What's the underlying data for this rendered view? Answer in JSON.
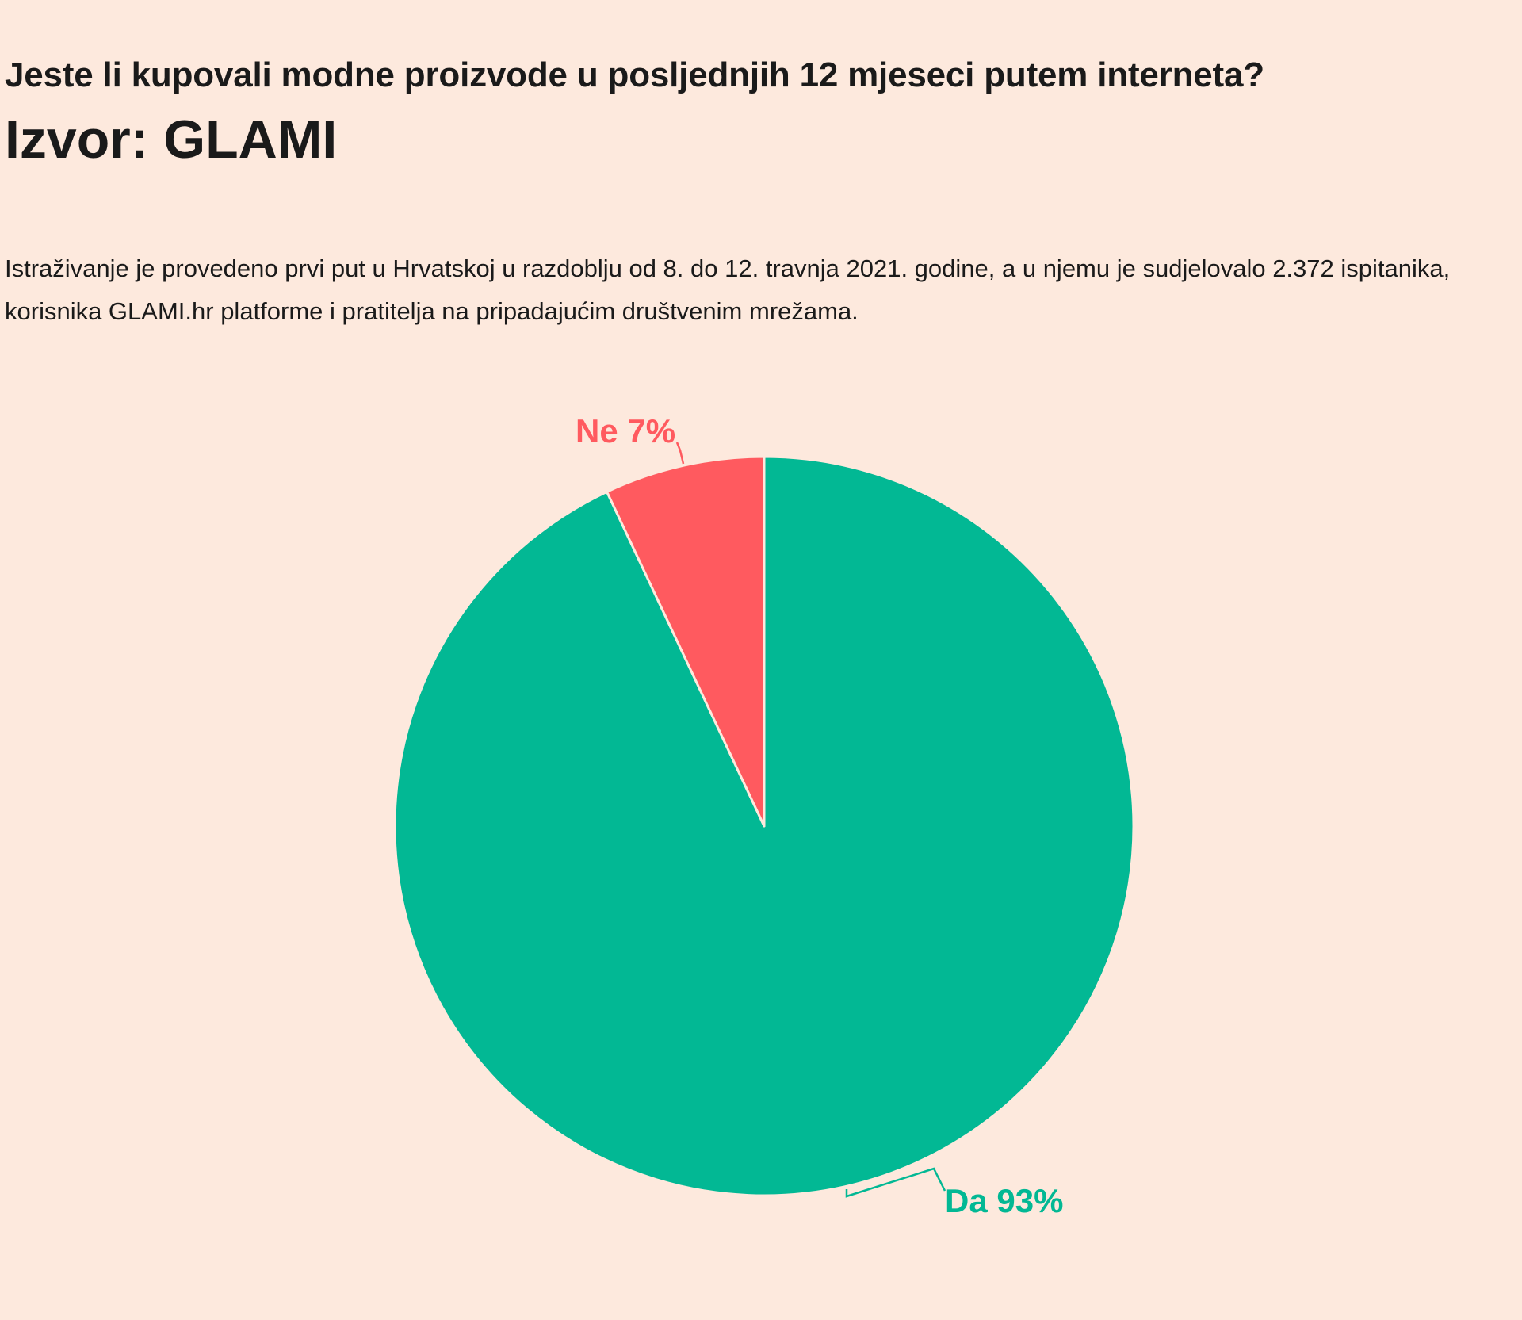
{
  "header": {
    "question": "Jeste li kupovali modne proizvode u posljednjih 12 mjeseci putem interneta?",
    "source": "Izvor: GLAMI"
  },
  "description": "Istraživanje je provedeno prvi put u Hrvatskoj u razdoblju od 8. do 12. travnja 2021. godine, a u njemu je sudjelovalo 2.372 ispitanika, korisnika GLAMI.hr platforme i pratitelja na pripadajućim društvenim mrežama.",
  "colors": {
    "background": "#fde9dd",
    "yes": "#02b894",
    "no": "#ff5a5f",
    "text": "#1a1a1a"
  },
  "chart_data": {
    "type": "pie",
    "title": "",
    "categories": [
      "Da",
      "Ne"
    ],
    "values": [
      93,
      7
    ],
    "labels": [
      "Da 93%",
      "Ne 7%"
    ],
    "start": "12 o'clock",
    "direction": "clockwise",
    "legend": "none"
  }
}
